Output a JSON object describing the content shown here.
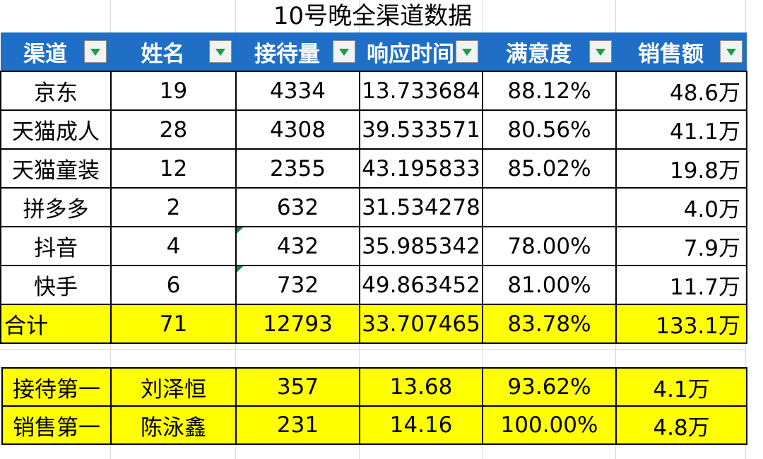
{
  "title": "10号晚全渠道数据",
  "headers": [
    "渠道",
    "姓名",
    "接待量",
    "响应时间",
    "满意度",
    "销售额"
  ],
  "rows": [
    [
      "京东",
      "19",
      "4334",
      "13.733684",
      "88.12%",
      "48.6万"
    ],
    [
      "天猫成人",
      "28",
      "4308",
      "39.533571",
      "80.56%",
      "41.1万"
    ],
    [
      "天猫童装",
      "12",
      "2355",
      "43.195833",
      "85.02%",
      "19.8万"
    ],
    [
      "拼多多",
      "2",
      "632",
      "31.534278",
      "",
      "4.0万"
    ],
    [
      "抖音",
      "4",
      "432",
      "35.985342",
      "78.00%",
      "7.9万"
    ],
    [
      "快手",
      "6",
      "732",
      "49.863452",
      "81.00%",
      "11.7万"
    ]
  ],
  "total": [
    "合计",
    "71",
    "12793",
    "33.707465",
    "83.78%",
    "133.1万"
  ],
  "top_rows": [
    [
      "接待第一",
      "刘泽恒",
      "357",
      "13.68",
      "93.62%",
      "4.1万"
    ],
    [
      "销售第一",
      "陈泳鑫",
      "231",
      "14.16",
      "100.00%",
      "4.8万"
    ]
  ],
  "colors": {
    "header_bg": "#1f6fc6",
    "highlight": "#ffff00",
    "filter_arrow": "#1a9e45"
  },
  "icons": {
    "filter": "filter-dropdown-icon"
  }
}
